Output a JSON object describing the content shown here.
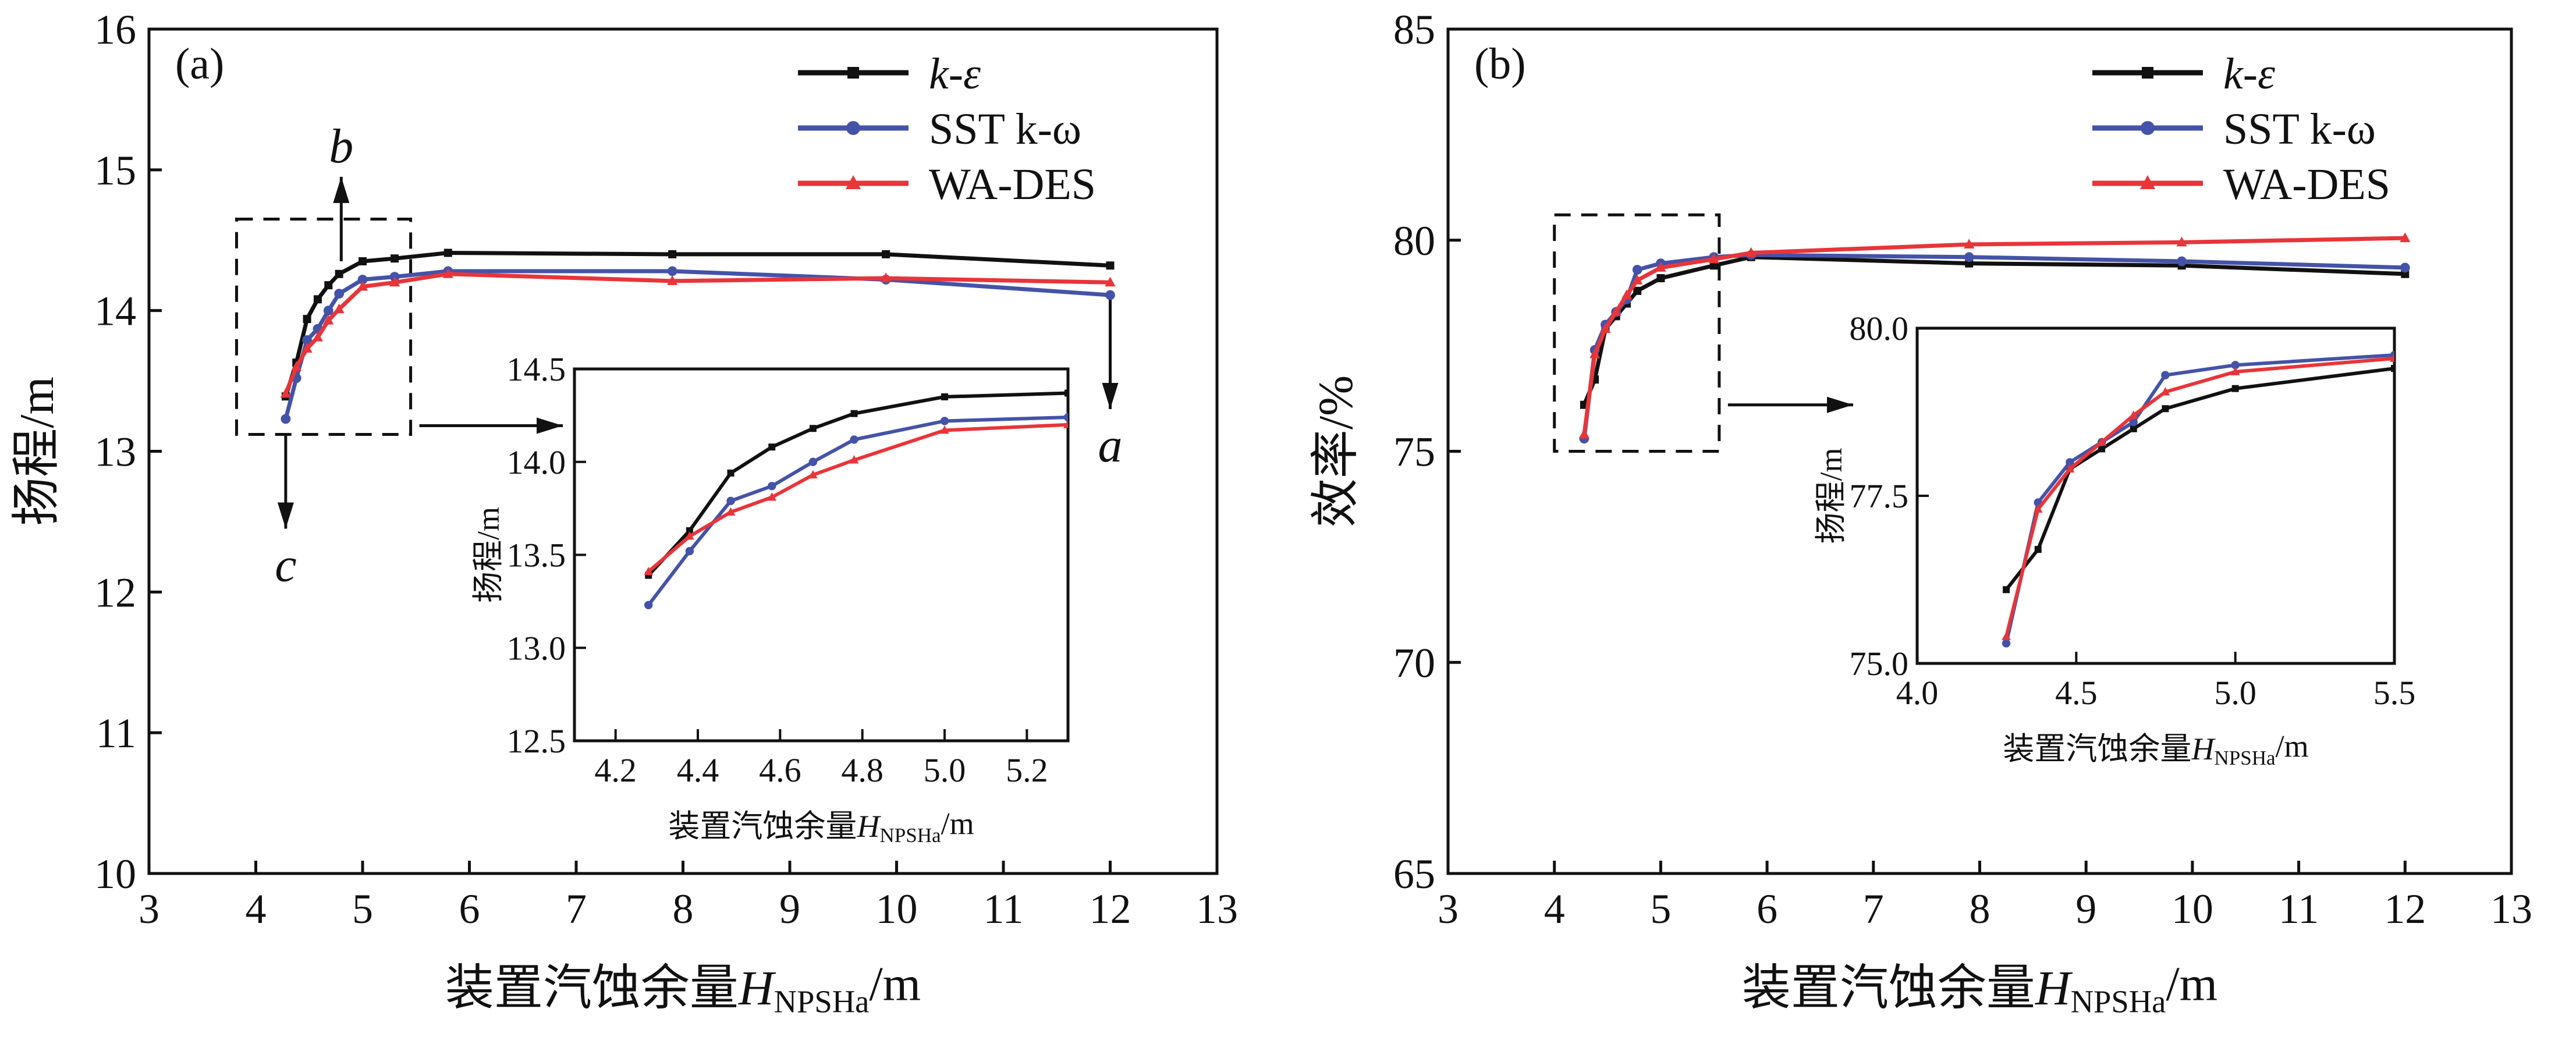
{
  "chart_data": [
    {
      "type": "line",
      "panel_label": "(a)",
      "xlabel": "装置汽蚀余量H",
      "xlabel_sub": "NPSHa",
      "xlabel_unit": "/m",
      "ylabel": "扬程/m",
      "xlim": [
        3,
        13
      ],
      "ylim": [
        10,
        16
      ],
      "xticks": [
        3,
        4,
        5,
        6,
        7,
        8,
        9,
        10,
        11,
        12,
        13
      ],
      "yticks": [
        10,
        11,
        12,
        13,
        14,
        15,
        16
      ],
      "legend": "top-right",
      "x": [
        4.28,
        4.38,
        4.48,
        4.58,
        4.68,
        4.78,
        5.0,
        5.3,
        5.8,
        7.9,
        9.9,
        12.0
      ],
      "series": [
        {
          "name": "k-ε",
          "color": "#111111",
          "marker": "square",
          "values": [
            13.39,
            13.63,
            13.94,
            14.08,
            14.18,
            14.26,
            14.35,
            14.37,
            14.41,
            14.4,
            14.4,
            14.32
          ]
        },
        {
          "name": "SST k-ω",
          "color": "#4453a8",
          "marker": "circle",
          "values": [
            13.23,
            13.52,
            13.79,
            13.87,
            14.0,
            14.12,
            14.22,
            14.24,
            14.28,
            14.28,
            14.22,
            14.11
          ]
        },
        {
          "name": "WA-DES",
          "color": "#e8353a",
          "marker": "triangle",
          "values": [
            13.41,
            13.6,
            13.73,
            13.81,
            13.93,
            14.01,
            14.17,
            14.2,
            14.26,
            14.21,
            14.23,
            14.2
          ]
        }
      ],
      "zoom_region": {
        "x": [
          3.82,
          5.45
        ],
        "y": [
          13.12,
          14.65
        ]
      },
      "annotations": [
        {
          "text": "b",
          "arrow": "up",
          "x": 4.8,
          "y_from": 14.35,
          "y_to": 14.95
        },
        {
          "text": "a",
          "arrow": "down",
          "x": 12.0,
          "y_from": 14.1,
          "y_to": 13.3
        },
        {
          "text": "c",
          "arrow": "down",
          "x": 4.28,
          "y_from": 13.12,
          "y_to": 12.45
        }
      ],
      "inset": {
        "xlabel": "装置汽蚀余量H",
        "xlabel_sub": "NPSHa",
        "xlabel_unit": "/m",
        "ylabel": "扬程/m",
        "xlim": [
          4.1,
          5.3
        ],
        "ylim": [
          12.5,
          14.5
        ],
        "xticks": [
          "4.2",
          "4.4",
          "4.6",
          "4.8",
          "5.0",
          "5.2"
        ],
        "yticks": [
          "12.5",
          "13.0",
          "13.5",
          "14.0",
          "14.5"
        ]
      }
    },
    {
      "type": "line",
      "panel_label": "(b)",
      "xlabel": "装置汽蚀余量H",
      "xlabel_sub": "NPSHa",
      "xlabel_unit": "/m",
      "ylabel": "效率/%",
      "xlim": [
        3,
        13
      ],
      "ylim": [
        65,
        85
      ],
      "xticks": [
        3,
        4,
        5,
        6,
        7,
        8,
        9,
        10,
        11,
        12,
        13
      ],
      "yticks": [
        65,
        70,
        75,
        80,
        85
      ],
      "legend": "top-right",
      "x": [
        4.28,
        4.38,
        4.48,
        4.58,
        4.68,
        4.78,
        5.0,
        5.5,
        5.85,
        7.9,
        9.9,
        12.0
      ],
      "series": [
        {
          "name": "k-ε",
          "color": "#111111",
          "marker": "square",
          "values": [
            76.1,
            76.7,
            77.9,
            78.2,
            78.5,
            78.8,
            79.1,
            79.4,
            79.6,
            79.45,
            79.4,
            79.2
          ]
        },
        {
          "name": "SST k-ω",
          "color": "#4453a8",
          "marker": "circle",
          "values": [
            75.3,
            77.4,
            78.0,
            78.3,
            78.6,
            79.3,
            79.45,
            79.6,
            79.65,
            79.6,
            79.5,
            79.35
          ]
        },
        {
          "name": "WA-DES",
          "color": "#e8353a",
          "marker": "triangle",
          "values": [
            75.4,
            77.3,
            77.9,
            78.3,
            78.7,
            79.05,
            79.35,
            79.55,
            79.7,
            79.9,
            79.95,
            80.05
          ]
        }
      ],
      "zoom_region": {
        "x": [
          4.0,
          5.55
        ],
        "y": [
          75.0,
          80.6
        ]
      },
      "annotations": [],
      "inset": {
        "xlabel": "装置汽蚀余量H",
        "xlabel_sub": "NPSHa",
        "xlabel_unit": "/m",
        "ylabel": "扬程/m",
        "xlim": [
          4.0,
          5.5
        ],
        "ylim": [
          75.0,
          80.0
        ],
        "xticks": [
          "4.0",
          "4.5",
          "5.0",
          "5.5"
        ],
        "yticks": [
          "75.0",
          "77.5",
          "80.0"
        ]
      }
    }
  ]
}
